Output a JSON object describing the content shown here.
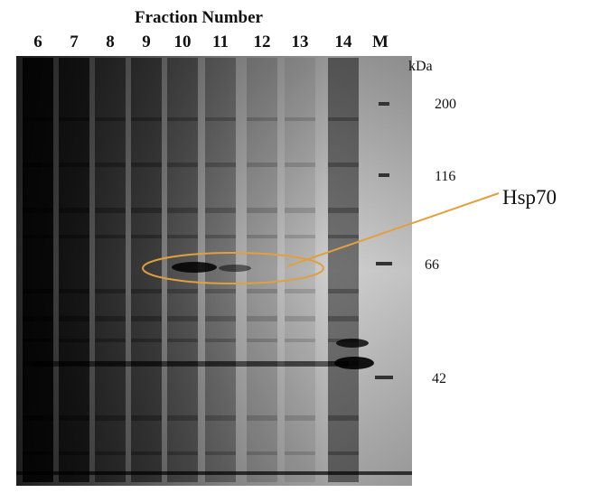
{
  "header": {
    "title": "Fraction Number"
  },
  "lanes": [
    "6",
    "7",
    "8",
    "9",
    "10",
    "11",
    "12",
    "13",
    "14",
    "M"
  ],
  "marker_unit": "kDa",
  "markers": [
    "200",
    "116",
    "66",
    "42"
  ],
  "annotation": "Hsp70"
}
